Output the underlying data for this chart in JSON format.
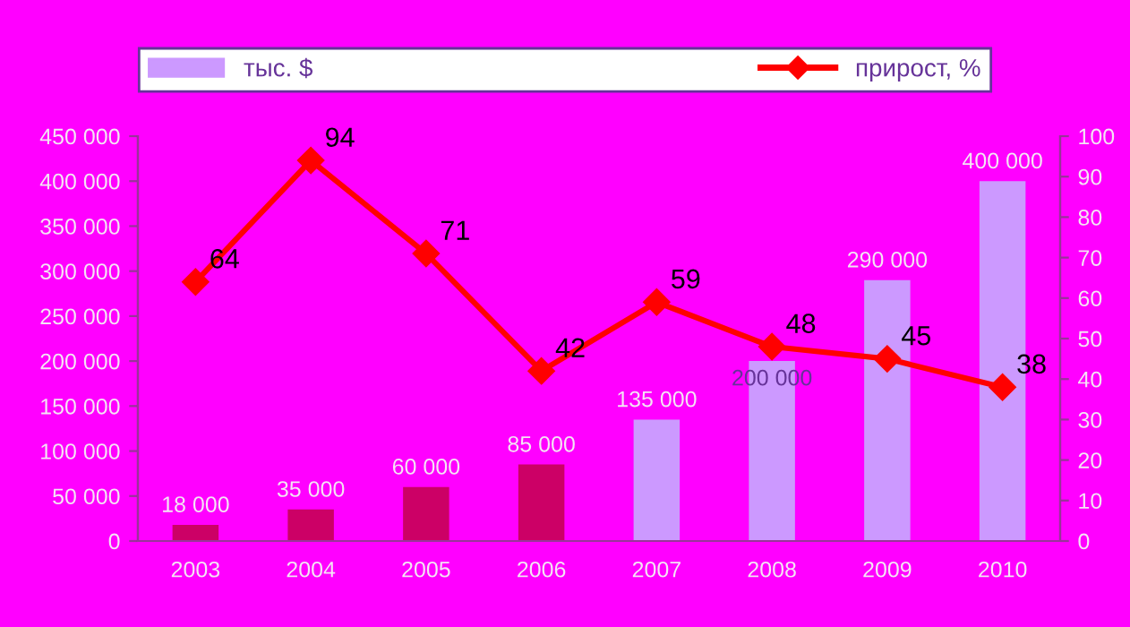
{
  "chart_data": {
    "type": "bar",
    "categories": [
      "2003",
      "2004",
      "2005",
      "2006",
      "2007",
      "2008",
      "2009",
      "2010"
    ],
    "series": [
      {
        "name": "тыс. $",
        "color": "#cc99ff",
        "colors": [
          "#cc0066",
          "#cc0066",
          "#cc0066",
          "#cc0066",
          "#cc99ff",
          "#cc99ff",
          "#cc99ff",
          "#cc99ff"
        ],
        "values": [
          18000,
          35000,
          60000,
          85000,
          135000,
          200000,
          290000,
          400000
        ],
        "value_labels": [
          "18 000",
          "35 000",
          "60 000",
          "85 000",
          "135 000",
          "200 000",
          "290 000",
          "400 000"
        ]
      },
      {
        "name": "прирост, %",
        "type": "line",
        "axis": "y2",
        "color": "#ff0000",
        "marker": "diamond",
        "line_style": "solid",
        "values": [
          64,
          94,
          71,
          42,
          59,
          48,
          45,
          38
        ],
        "value_labels": [
          "64",
          "94",
          "71",
          "42",
          "59",
          "48",
          "45",
          "38"
        ]
      }
    ],
    "ylim": [
      0,
      450000
    ],
    "yticks": [
      0,
      {
        "value": 50000,
        "label": "50 000"
      },
      {
        "value": 100000,
        "label": "100 000"
      },
      {
        "value": 150000,
        "label": "150 000"
      },
      {
        "value": 200000,
        "label": "200 000"
      },
      {
        "value": 250000,
        "label": "250 000"
      },
      {
        "value": 300000,
        "label": "300 000"
      },
      {
        "value": 350000,
        "label": "350 000"
      },
      {
        "value": 400000,
        "label": "400 000"
      },
      {
        "value": 450000,
        "label": "450 000"
      }
    ],
    "y2lim": [
      0,
      100
    ],
    "y2ticks": [
      0,
      10,
      20,
      30,
      40,
      50,
      60,
      70,
      80,
      90,
      100
    ],
    "grid": false,
    "legend": "top"
  }
}
